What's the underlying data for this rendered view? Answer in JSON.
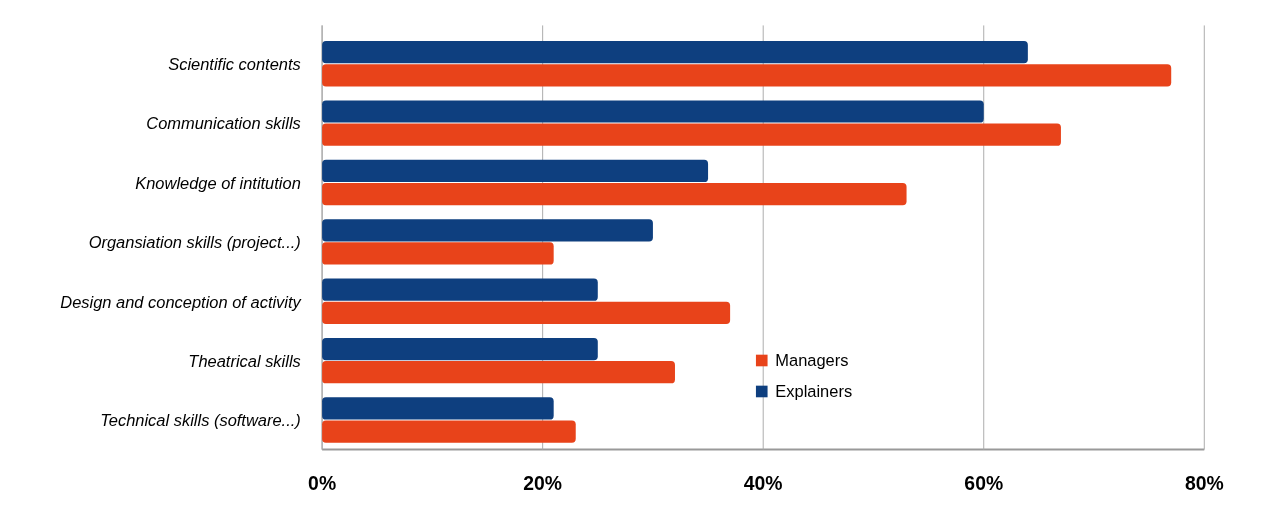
{
  "chart_data": {
    "type": "bar",
    "orientation": "horizontal",
    "categories": [
      "Scientific contents",
      "Communication skills",
      "Knowledge of intitution",
      "Organsiation skills (project...)",
      "Design and conception of activity",
      "Theatrical skills",
      "Technical skills (software...)"
    ],
    "series": [
      {
        "name": "Managers",
        "color": "#e8431a",
        "values": [
          77,
          67,
          53,
          21,
          37,
          32,
          23
        ]
      },
      {
        "name": "Explainers",
        "color": "#0e3f7f",
        "values": [
          64,
          60,
          35,
          30,
          25,
          25,
          21
        ]
      }
    ],
    "xlim": [
      0,
      80
    ],
    "xticks": [
      {
        "value": 0,
        "label": "0%"
      },
      {
        "value": 20,
        "label": "20%"
      },
      {
        "value": 40,
        "label": "40%"
      },
      {
        "value": 60,
        "label": "60%"
      },
      {
        "value": 80,
        "label": "80%"
      }
    ],
    "grid": "x",
    "legend": "bottom right"
  }
}
